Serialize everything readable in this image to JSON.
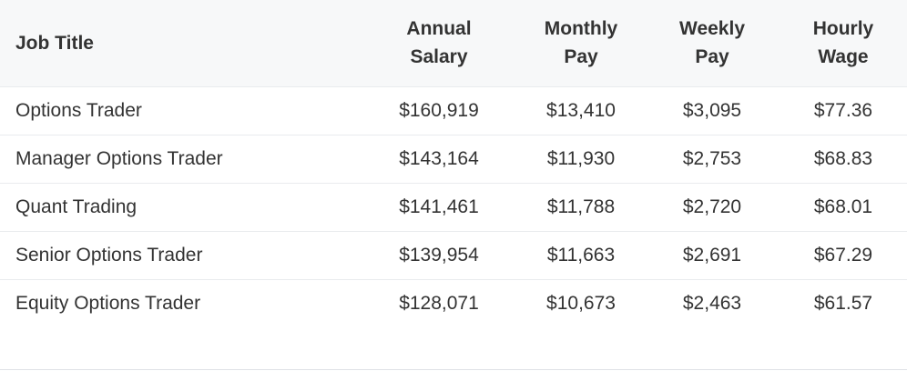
{
  "table": {
    "headers": [
      "Job Title",
      "Annual Salary",
      "Monthly Pay",
      "Weekly Pay",
      "Hourly Wage"
    ],
    "rows": [
      {
        "title": "Options Trader",
        "annual": "$160,919",
        "monthly": "$13,410",
        "weekly": "$3,095",
        "hourly": "$77.36"
      },
      {
        "title": "Manager Options Trader",
        "annual": "$143,164",
        "monthly": "$11,930",
        "weekly": "$2,753",
        "hourly": "$68.83"
      },
      {
        "title": "Quant Trading",
        "annual": "$141,461",
        "monthly": "$11,788",
        "weekly": "$2,720",
        "hourly": "$68.01"
      },
      {
        "title": "Senior Options Trader",
        "annual": "$139,954",
        "monthly": "$11,663",
        "weekly": "$2,691",
        "hourly": "$67.29"
      },
      {
        "title": "Equity Options Trader",
        "annual": "$128,071",
        "monthly": "$10,673",
        "weekly": "$2,463",
        "hourly": "$61.57"
      }
    ]
  },
  "colors": {
    "header_background": "#f7f8f9",
    "text": "#333333",
    "row_divider": "#e9ebee"
  }
}
